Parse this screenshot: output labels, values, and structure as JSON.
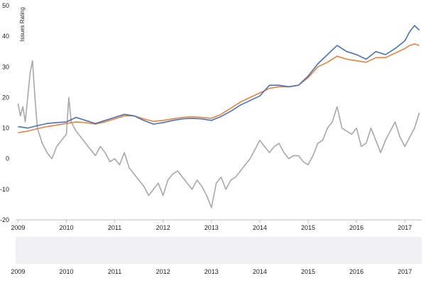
{
  "chart_data": {
    "type": "line",
    "ylabel": "Issues Rating",
    "ylim": [
      -20,
      50
    ],
    "yticks": [
      -20,
      -10,
      0,
      10,
      20,
      30,
      40,
      50
    ],
    "xlim": [
      2008.95,
      2017.35
    ],
    "xticks": [
      "2009",
      "2010",
      "2011",
      "2012",
      "2013",
      "2014",
      "2015",
      "2016",
      "2017"
    ],
    "grid": false,
    "legend": "none",
    "series": [
      {
        "color": "#4a72b8",
        "x": [
          2009.0,
          2009.2,
          2009.4,
          2009.6,
          2009.8,
          2010.0,
          2010.2,
          2010.4,
          2010.6,
          2010.8,
          2011.0,
          2011.2,
          2011.4,
          2011.6,
          2011.8,
          2012.0,
          2012.2,
          2012.4,
          2012.6,
          2012.8,
          2013.0,
          2013.2,
          2013.4,
          2013.6,
          2013.8,
          2014.0,
          2014.2,
          2014.4,
          2014.6,
          2014.8,
          2015.0,
          2015.2,
          2015.4,
          2015.6,
          2015.8,
          2016.0,
          2016.2,
          2016.4,
          2016.6,
          2016.8,
          2017.0,
          2017.1,
          2017.2,
          2017.3
        ],
        "y": [
          10.5,
          10,
          10.8,
          11.5,
          11.8,
          12,
          13.5,
          12.5,
          11.5,
          12.5,
          13.5,
          14.5,
          14,
          12.5,
          11.3,
          11.8,
          12.5,
          13,
          13.2,
          13,
          12.5,
          13.8,
          15.5,
          17.5,
          19,
          20.5,
          24,
          24,
          23.5,
          24,
          27,
          31,
          34,
          37,
          35,
          34,
          32.5,
          35,
          34,
          36,
          38.5,
          41.5,
          43.5,
          42
        ]
      },
      {
        "color": "#e8823a",
        "x": [
          2009.0,
          2009.2,
          2009.4,
          2009.6,
          2009.8,
          2010.0,
          2010.2,
          2010.4,
          2010.6,
          2010.8,
          2011.0,
          2011.2,
          2011.4,
          2011.6,
          2011.8,
          2012.0,
          2012.2,
          2012.4,
          2012.6,
          2012.8,
          2013.0,
          2013.2,
          2013.4,
          2013.6,
          2013.8,
          2014.0,
          2014.2,
          2014.4,
          2014.6,
          2014.8,
          2015.0,
          2015.2,
          2015.4,
          2015.6,
          2015.8,
          2016.0,
          2016.2,
          2016.4,
          2016.6,
          2016.8,
          2017.0,
          2017.1,
          2017.2,
          2017.3
        ],
        "y": [
          8.5,
          9,
          9.8,
          10.5,
          11,
          11.5,
          12,
          11.8,
          11.3,
          12,
          13,
          14,
          14,
          13,
          12.2,
          12.5,
          13,
          13.5,
          13.7,
          13.5,
          13.2,
          14.5,
          16.5,
          18.5,
          20,
          21.5,
          23,
          23.5,
          23.5,
          24,
          26.5,
          30,
          31.5,
          33.5,
          32.5,
          32,
          31.5,
          33,
          33,
          34.5,
          36,
          37,
          37.5,
          37
        ]
      },
      {
        "color": "#a8a8a8",
        "x": [
          2009.0,
          2009.05,
          2009.1,
          2009.15,
          2009.2,
          2009.25,
          2009.3,
          2009.35,
          2009.4,
          2009.5,
          2009.6,
          2009.7,
          2009.8,
          2009.9,
          2010.0,
          2010.05,
          2010.1,
          2010.2,
          2010.3,
          2010.4,
          2010.5,
          2010.6,
          2010.7,
          2010.8,
          2010.9,
          2011.0,
          2011.1,
          2011.2,
          2011.3,
          2011.4,
          2011.5,
          2011.6,
          2011.7,
          2011.8,
          2011.9,
          2012.0,
          2012.1,
          2012.2,
          2012.3,
          2012.4,
          2012.5,
          2012.6,
          2012.7,
          2012.8,
          2012.9,
          2013.0,
          2013.1,
          2013.2,
          2013.3,
          2013.4,
          2013.5,
          2013.6,
          2013.7,
          2013.8,
          2013.9,
          2014.0,
          2014.1,
          2014.2,
          2014.3,
          2014.4,
          2014.5,
          2014.6,
          2014.7,
          2014.8,
          2014.9,
          2015.0,
          2015.1,
          2015.2,
          2015.3,
          2015.4,
          2015.5,
          2015.6,
          2015.7,
          2015.8,
          2015.9,
          2016.0,
          2016.1,
          2016.2,
          2016.3,
          2016.4,
          2016.5,
          2016.6,
          2016.7,
          2016.8,
          2016.9,
          2017.0,
          2017.1,
          2017.2,
          2017.3
        ],
        "y": [
          18,
          14,
          17,
          12,
          20,
          28,
          32,
          20,
          10,
          5,
          2,
          0,
          4,
          6,
          8,
          20,
          12,
          9,
          7,
          5,
          3,
          1,
          4,
          2,
          -1,
          0,
          -2,
          2,
          -3,
          -5,
          -7,
          -9,
          -12,
          -10,
          -8,
          -12,
          -7,
          -5,
          -4,
          -6,
          -8,
          -10,
          -7,
          -9,
          -12,
          -16,
          -8,
          -6,
          -10,
          -7,
          -6,
          -4,
          -2,
          0,
          3,
          6,
          4,
          2,
          4,
          5,
          2,
          0,
          1,
          1,
          -1,
          -2,
          1,
          5,
          6,
          10,
          12,
          17,
          10,
          9,
          8,
          10,
          4,
          5,
          10,
          6,
          2,
          6,
          9,
          12,
          7,
          4,
          7,
          10,
          15
        ]
      }
    ]
  },
  "navigator": {
    "xticks": [
      "2009",
      "2010",
      "2011",
      "2012",
      "2013",
      "2014",
      "2015",
      "2016",
      "2017"
    ]
  }
}
